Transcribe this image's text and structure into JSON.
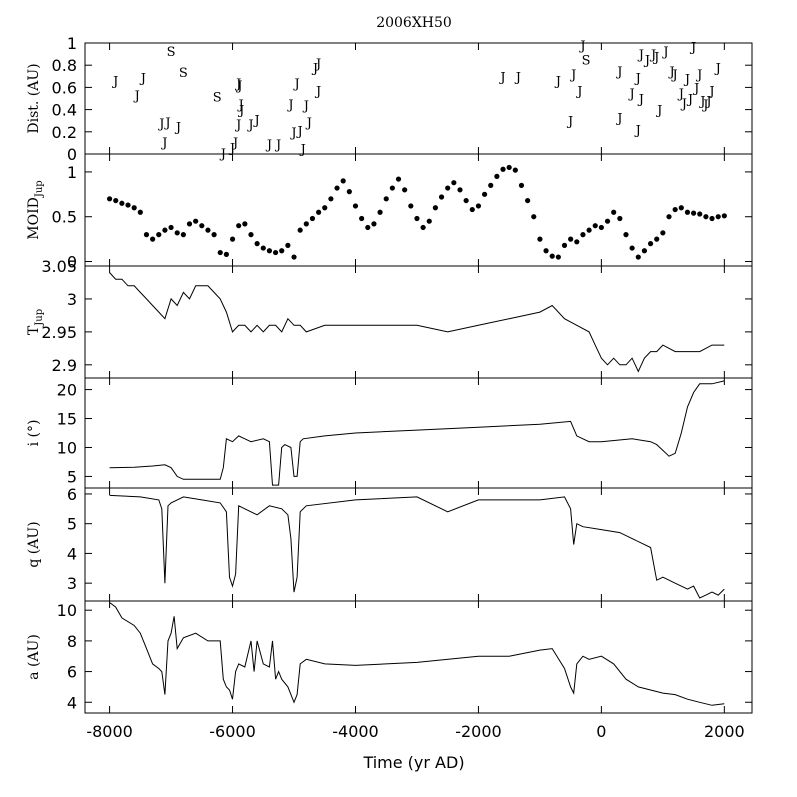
{
  "chart_data": {
    "type": "line",
    "title": "2006XH50",
    "xlabel": "Time (yr AD)",
    "xlim": [
      -8400,
      2450
    ],
    "x_ticks": [
      -8000,
      -6000,
      -4000,
      -2000,
      0,
      2000
    ],
    "x_tick_labels": [
      "-8000",
      "-6000",
      "-4000",
      "-2000",
      "0",
      "2000"
    ],
    "panels": [
      {
        "id": "encounters",
        "type": "scatter-text",
        "ylabel": "Dist. (AU)",
        "ylim": [
          0,
          1
        ],
        "y_ticks": [
          0,
          0.2,
          0.4,
          0.6,
          0.8,
          1
        ],
        "y_tick_labels": [
          "0",
          "0.2",
          "0.4",
          "0.6",
          "0.8",
          "1"
        ],
        "points": [
          {
            "x": -7900,
            "y": 0.66,
            "label": "J"
          },
          {
            "x": -7550,
            "y": 0.53,
            "label": "J"
          },
          {
            "x": -7450,
            "y": 0.69,
            "label": "J"
          },
          {
            "x": -7150,
            "y": 0.28,
            "label": "J"
          },
          {
            "x": -7050,
            "y": 0.29,
            "label": "J"
          },
          {
            "x": -7100,
            "y": 0.11,
            "label": "J"
          },
          {
            "x": -6880,
            "y": 0.25,
            "label": "J"
          },
          {
            "x": -7000,
            "y": 0.93,
            "label": "S"
          },
          {
            "x": -6800,
            "y": 0.74,
            "label": "S"
          },
          {
            "x": -6250,
            "y": 0.52,
            "label": "S"
          },
          {
            "x": -6150,
            "y": 0.01,
            "label": "J"
          },
          {
            "x": -6000,
            "y": 0.06,
            "label": "J"
          },
          {
            "x": -5950,
            "y": 0.11,
            "label": "J"
          },
          {
            "x": -5900,
            "y": 0.64,
            "label": "J"
          },
          {
            "x": -5880,
            "y": 0.62,
            "label": "J"
          },
          {
            "x": -5860,
            "y": 0.45,
            "label": "J"
          },
          {
            "x": -5850,
            "y": 0.4,
            "label": "J"
          },
          {
            "x": -5900,
            "y": 0.27,
            "label": "J"
          },
          {
            "x": -5700,
            "y": 0.27,
            "label": "J"
          },
          {
            "x": -5600,
            "y": 0.31,
            "label": "J"
          },
          {
            "x": -5400,
            "y": 0.09,
            "label": "J"
          },
          {
            "x": -5250,
            "y": 0.09,
            "label": "J"
          },
          {
            "x": -5050,
            "y": 0.45,
            "label": "J"
          },
          {
            "x": -5000,
            "y": 0.2,
            "label": "J"
          },
          {
            "x": -4950,
            "y": 0.64,
            "label": "J"
          },
          {
            "x": -4900,
            "y": 0.21,
            "label": "J"
          },
          {
            "x": -4850,
            "y": 0.05,
            "label": "J"
          },
          {
            "x": -4800,
            "y": 0.44,
            "label": "J"
          },
          {
            "x": -4750,
            "y": 0.29,
            "label": "J"
          },
          {
            "x": -4600,
            "y": 0.57,
            "label": "J"
          },
          {
            "x": -4650,
            "y": 0.78,
            "label": "J"
          },
          {
            "x": -4600,
            "y": 0.82,
            "label": "J"
          },
          {
            "x": -1600,
            "y": 0.7,
            "label": "J"
          },
          {
            "x": -1350,
            "y": 0.7,
            "label": "J"
          },
          {
            "x": -700,
            "y": 0.66,
            "label": "J"
          },
          {
            "x": -500,
            "y": 0.3,
            "label": "J"
          },
          {
            "x": -450,
            "y": 0.72,
            "label": "J"
          },
          {
            "x": -350,
            "y": 0.57,
            "label": "J"
          },
          {
            "x": -300,
            "y": 0.98,
            "label": "J"
          },
          {
            "x": -250,
            "y": 0.85,
            "label": "S"
          },
          {
            "x": 300,
            "y": 0.75,
            "label": "J"
          },
          {
            "x": 300,
            "y": 0.33,
            "label": "J"
          },
          {
            "x": 500,
            "y": 0.55,
            "label": "J"
          },
          {
            "x": 600,
            "y": 0.69,
            "label": "J"
          },
          {
            "x": 600,
            "y": 0.22,
            "label": "J"
          },
          {
            "x": 650,
            "y": 0.5,
            "label": "J"
          },
          {
            "x": 650,
            "y": 0.9,
            "label": "J"
          },
          {
            "x": 750,
            "y": 0.85,
            "label": "J"
          },
          {
            "x": 850,
            "y": 0.9,
            "label": "J"
          },
          {
            "x": 900,
            "y": 0.88,
            "label": "J"
          },
          {
            "x": 950,
            "y": 0.4,
            "label": "J"
          },
          {
            "x": 1050,
            "y": 0.93,
            "label": "J"
          },
          {
            "x": 1150,
            "y": 0.75,
            "label": "J"
          },
          {
            "x": 1200,
            "y": 0.72,
            "label": "J"
          },
          {
            "x": 1300,
            "y": 0.55,
            "label": "J"
          },
          {
            "x": 1350,
            "y": 0.46,
            "label": "J"
          },
          {
            "x": 1400,
            "y": 0.68,
            "label": "J"
          },
          {
            "x": 1450,
            "y": 0.5,
            "label": "J"
          },
          {
            "x": 1500,
            "y": 0.97,
            "label": "J"
          },
          {
            "x": 1550,
            "y": 0.6,
            "label": "J"
          },
          {
            "x": 1600,
            "y": 0.72,
            "label": "J"
          },
          {
            "x": 1650,
            "y": 0.48,
            "label": "J"
          },
          {
            "x": 1700,
            "y": 0.45,
            "label": "J"
          },
          {
            "x": 1750,
            "y": 0.48,
            "label": "J"
          },
          {
            "x": 1800,
            "y": 0.57,
            "label": "J"
          },
          {
            "x": 1900,
            "y": 0.78,
            "label": "J"
          }
        ]
      },
      {
        "id": "moid",
        "type": "scatter",
        "ylabel": "MOID",
        "ylabel_sub": "Jup",
        "ylim": [
          -0.05,
          1.2
        ],
        "y_ticks": [
          0,
          0.5,
          1
        ],
        "y_tick_labels": [
          "0",
          "0.5",
          "1"
        ],
        "x": [
          -8000,
          -7900,
          -7800,
          -7700,
          -7600,
          -7500,
          -7400,
          -7300,
          -7200,
          -7100,
          -7000,
          -6900,
          -6800,
          -6700,
          -6600,
          -6500,
          -6400,
          -6300,
          -6200,
          -6100,
          -6000,
          -5900,
          -5800,
          -5700,
          -5600,
          -5500,
          -5400,
          -5300,
          -5200,
          -5100,
          -5000,
          -4900,
          -4800,
          -4700,
          -4600,
          -4500,
          -4400,
          -4300,
          -4200,
          -4100,
          -4000,
          -3900,
          -3800,
          -3700,
          -3600,
          -3500,
          -3400,
          -3300,
          -3200,
          -3100,
          -3000,
          -2900,
          -2800,
          -2700,
          -2600,
          -2500,
          -2400,
          -2300,
          -2200,
          -2100,
          -2000,
          -1900,
          -1800,
          -1700,
          -1600,
          -1500,
          -1400,
          -1300,
          -1200,
          -1100,
          -1000,
          -900,
          -800,
          -700,
          -600,
          -500,
          -400,
          -300,
          -200,
          -100,
          0,
          100,
          200,
          300,
          400,
          500,
          600,
          700,
          800,
          900,
          1000,
          1100,
          1200,
          1300,
          1400,
          1500,
          1600,
          1700,
          1800,
          1900,
          2000
        ],
        "values": [
          0.7,
          0.68,
          0.65,
          0.63,
          0.6,
          0.55,
          0.3,
          0.25,
          0.3,
          0.35,
          0.38,
          0.32,
          0.3,
          0.42,
          0.45,
          0.4,
          0.35,
          0.3,
          0.1,
          0.08,
          0.25,
          0.4,
          0.42,
          0.3,
          0.2,
          0.15,
          0.12,
          0.1,
          0.12,
          0.18,
          0.05,
          0.35,
          0.42,
          0.48,
          0.55,
          0.6,
          0.7,
          0.82,
          0.9,
          0.78,
          0.62,
          0.48,
          0.38,
          0.42,
          0.55,
          0.7,
          0.82,
          0.92,
          0.8,
          0.62,
          0.48,
          0.38,
          0.45,
          0.6,
          0.72,
          0.82,
          0.88,
          0.8,
          0.68,
          0.58,
          0.62,
          0.75,
          0.85,
          0.95,
          1.03,
          1.05,
          1.02,
          0.85,
          0.68,
          0.5,
          0.25,
          0.12,
          0.06,
          0.05,
          0.18,
          0.25,
          0.22,
          0.3,
          0.35,
          0.4,
          0.38,
          0.45,
          0.55,
          0.48,
          0.3,
          0.15,
          0.05,
          0.12,
          0.2,
          0.25,
          0.32,
          0.5,
          0.58,
          0.6,
          0.55,
          0.54,
          0.53,
          0.5,
          0.48,
          0.5,
          0.51
        ]
      },
      {
        "id": "tjup",
        "type": "line",
        "ylabel": "T",
        "ylabel_sub": "Jup",
        "ylim": [
          2.88,
          3.05
        ],
        "y_ticks": [
          2.9,
          2.95,
          3,
          3.05
        ],
        "y_tick_labels": [
          "2.9",
          "2.95",
          "3",
          "3.05"
        ],
        "x": [
          -8000,
          -7900,
          -7800,
          -7700,
          -7600,
          -7500,
          -7400,
          -7300,
          -7200,
          -7100,
          -7000,
          -6900,
          -6800,
          -6700,
          -6600,
          -6500,
          -6400,
          -6300,
          -6200,
          -6100,
          -6000,
          -5900,
          -5800,
          -5700,
          -5600,
          -5500,
          -5400,
          -5300,
          -5200,
          -5100,
          -5000,
          -4900,
          -4800,
          -4500,
          -4000,
          -3500,
          -3000,
          -2500,
          -2000,
          -1500,
          -1000,
          -800,
          -600,
          -400,
          -200,
          -100,
          0,
          100,
          200,
          300,
          400,
          500,
          600,
          700,
          800,
          900,
          1000,
          1200,
          1400,
          1600,
          1800,
          2000
        ],
        "values": [
          3.04,
          3.03,
          3.03,
          3.02,
          3.02,
          3.01,
          3.0,
          2.99,
          2.98,
          2.97,
          3.0,
          2.99,
          3.01,
          3.0,
          3.02,
          3.02,
          3.02,
          3.01,
          3.0,
          2.98,
          2.95,
          2.96,
          2.96,
          2.95,
          2.96,
          2.95,
          2.96,
          2.96,
          2.95,
          2.97,
          2.96,
          2.96,
          2.95,
          2.96,
          2.96,
          2.96,
          2.96,
          2.95,
          2.96,
          2.97,
          2.98,
          2.99,
          2.97,
          2.96,
          2.95,
          2.93,
          2.91,
          2.9,
          2.91,
          2.9,
          2.9,
          2.91,
          2.89,
          2.91,
          2.92,
          2.92,
          2.93,
          2.92,
          2.92,
          2.92,
          2.93,
          2.93
        ]
      },
      {
        "id": "incl",
        "type": "line",
        "ylabel": "i (°)",
        "ylim": [
          3,
          22
        ],
        "y_ticks": [
          5,
          10,
          15,
          20
        ],
        "y_tick_labels": [
          "5",
          "10",
          "15",
          "20"
        ],
        "x": [
          -8000,
          -7600,
          -7300,
          -7100,
          -7000,
          -6900,
          -6800,
          -6200,
          -6150,
          -6100,
          -6000,
          -5900,
          -5800,
          -5700,
          -5500,
          -5400,
          -5350,
          -5300,
          -5250,
          -5200,
          -5150,
          -5050,
          -5000,
          -4950,
          -4900,
          -4850,
          -4500,
          -4000,
          -3000,
          -2000,
          -1000,
          -500,
          -400,
          -300,
          -200,
          0,
          500,
          800,
          900,
          950,
          1000,
          1100,
          1200,
          1300,
          1400,
          1500,
          1600,
          1800,
          2000
        ],
        "values": [
          6.5,
          6.6,
          6.8,
          7.0,
          6.5,
          5.0,
          4.5,
          4.5,
          6.5,
          11.5,
          11.0,
          12.0,
          11.5,
          11.0,
          11.5,
          11.0,
          3.5,
          3.5,
          3.5,
          10.0,
          10.5,
          10.0,
          5.0,
          5.0,
          11.0,
          11.5,
          12.0,
          12.5,
          13.0,
          13.5,
          14.0,
          14.5,
          12.0,
          11.5,
          11.0,
          11.0,
          11.5,
          11.0,
          10.5,
          10.0,
          9.5,
          8.5,
          9.0,
          12.5,
          17.0,
          19.5,
          21.0,
          21.0,
          21.5
        ]
      },
      {
        "id": "q",
        "type": "line",
        "ylabel": "q (AU)",
        "ylim": [
          2.4,
          6.2
        ],
        "y_ticks": [
          3,
          4,
          5,
          6
        ],
        "y_tick_labels": [
          "3",
          "4",
          "5",
          "6"
        ],
        "x": [
          -8000,
          -7500,
          -7200,
          -7150,
          -7100,
          -7050,
          -7000,
          -6800,
          -6500,
          -6200,
          -6100,
          -6050,
          -6000,
          -5950,
          -5900,
          -5800,
          -5600,
          -5400,
          -5200,
          -5100,
          -5050,
          -5000,
          -4950,
          -4900,
          -4800,
          -4000,
          -3000,
          -2500,
          -2000,
          -1500,
          -1000,
          -600,
          -500,
          -450,
          -400,
          -300,
          0,
          300,
          500,
          800,
          900,
          1000,
          1200,
          1400,
          1500,
          1600,
          1700,
          1800,
          1900,
          2000
        ],
        "values": [
          5.95,
          5.9,
          5.8,
          5.5,
          3.0,
          5.6,
          5.7,
          5.9,
          5.8,
          5.7,
          5.4,
          3.2,
          2.9,
          3.3,
          5.6,
          5.5,
          5.3,
          5.6,
          5.5,
          5.3,
          4.5,
          2.7,
          3.2,
          5.4,
          5.6,
          5.8,
          5.9,
          5.4,
          5.8,
          5.8,
          5.8,
          5.9,
          5.5,
          4.3,
          5.0,
          4.9,
          4.8,
          4.7,
          4.5,
          4.2,
          3.1,
          3.2,
          3.0,
          2.8,
          2.9,
          2.5,
          2.6,
          2.7,
          2.6,
          2.8
        ]
      },
      {
        "id": "a",
        "type": "line",
        "ylabel": "a (AU)",
        "ylim": [
          3.3,
          10.6
        ],
        "y_ticks": [
          4,
          6,
          8,
          10
        ],
        "y_tick_labels": [
          "4",
          "6",
          "8",
          "10"
        ],
        "x": [
          -8000,
          -7900,
          -7800,
          -7600,
          -7500,
          -7400,
          -7300,
          -7200,
          -7150,
          -7100,
          -7050,
          -7000,
          -6950,
          -6900,
          -6800,
          -6600,
          -6400,
          -6200,
          -6150,
          -6100,
          -6050,
          -6000,
          -5950,
          -5900,
          -5800,
          -5700,
          -5650,
          -5600,
          -5500,
          -5400,
          -5350,
          -5300,
          -5250,
          -5200,
          -5100,
          -5000,
          -4950,
          -4900,
          -4800,
          -4500,
          -4000,
          -3000,
          -2000,
          -1500,
          -1000,
          -800,
          -600,
          -500,
          -450,
          -400,
          -300,
          -200,
          0,
          200,
          400,
          600,
          800,
          1000,
          1200,
          1400,
          1600,
          1800,
          2000
        ],
        "values": [
          10.5,
          10.2,
          9.5,
          9.0,
          8.5,
          7.5,
          6.5,
          6.2,
          6.0,
          4.5,
          8.0,
          8.5,
          9.6,
          7.5,
          8.2,
          8.5,
          8.0,
          8.0,
          5.5,
          5.0,
          4.8,
          4.2,
          6.0,
          6.5,
          6.3,
          8.0,
          6.0,
          8.0,
          6.5,
          6.3,
          8.0,
          5.5,
          6.0,
          5.5,
          5.0,
          4.0,
          4.5,
          6.5,
          6.8,
          6.5,
          6.4,
          6.6,
          7.0,
          7.0,
          7.4,
          7.5,
          6.2,
          5.0,
          4.6,
          6.5,
          7.0,
          6.8,
          7.0,
          6.5,
          5.5,
          5.0,
          4.8,
          4.6,
          4.5,
          4.2,
          4.0,
          3.8,
          3.9
        ]
      }
    ]
  }
}
